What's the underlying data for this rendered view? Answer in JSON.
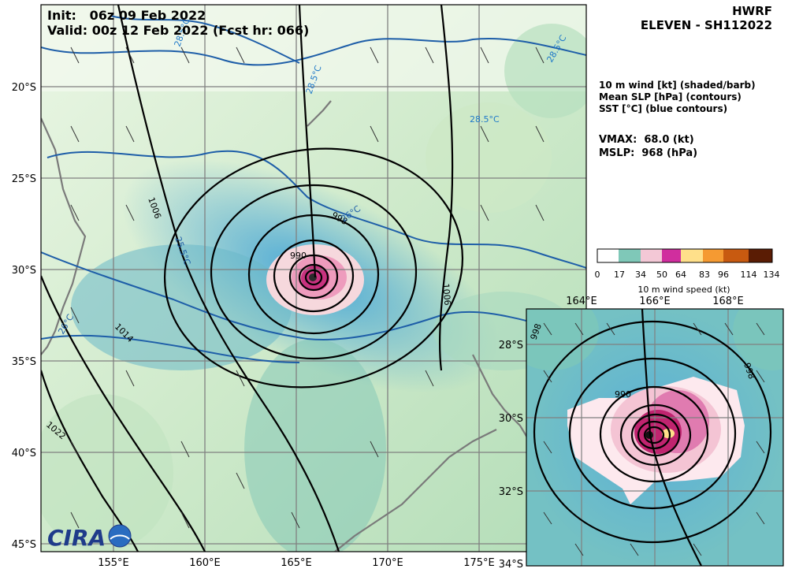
{
  "header": {
    "init_label": "Init:   06z 09 Feb 2022",
    "valid_label": "Valid: 00z 12 Feb 2022 (Fcst hr: 066)"
  },
  "title": {
    "model": "HWRF",
    "storm": "ELEVEN - SH112022"
  },
  "legend": {
    "line1": "10 m wind [kt] (shaded/barb)",
    "line2": "Mean SLP [hPa] (contours)",
    "line3": "SST [°C] (blue contours)"
  },
  "stats": {
    "vmax": "VMAX:  68.0 (kt)",
    "mslp": "MSLP:  968 (hPa)"
  },
  "colorbar": {
    "ticks": [
      "0",
      "17",
      "34",
      "50",
      "64",
      "83",
      "96",
      "114",
      "134"
    ],
    "label": "10 m wind speed (kt)",
    "colors": [
      "#ffffff",
      "#7fc8b8",
      "#4aa8d8",
      "#f3c8d6",
      "#d02e9e",
      "#ffe08a",
      "#f59a32",
      "#c85a10",
      "#5a1c04"
    ]
  },
  "main_map": {
    "lat_labels": [
      "20°S",
      "25°S",
      "30°S",
      "35°S",
      "40°S",
      "45°S"
    ],
    "lon_labels": [
      "155°E",
      "160°E",
      "165°E",
      "170°E",
      "175°E"
    ],
    "slp_labels": [
      "1006",
      "998",
      "990",
      "1006",
      "1014",
      "1022"
    ],
    "sst_labels": [
      "28.5°C",
      "28.5°C",
      "28.5°C",
      "28.5°C",
      "26°C",
      "25.5°C",
      "26°C"
    ],
    "inset_lat_labels": [
      "28°S",
      "30°S",
      "32°S",
      "34°S"
    ]
  },
  "inset": {
    "lon_labels": [
      "164°E",
      "166°E",
      "168°E"
    ],
    "slp_labels": [
      "990",
      "998",
      "998"
    ]
  },
  "logo": {
    "text": "CIRA"
  }
}
